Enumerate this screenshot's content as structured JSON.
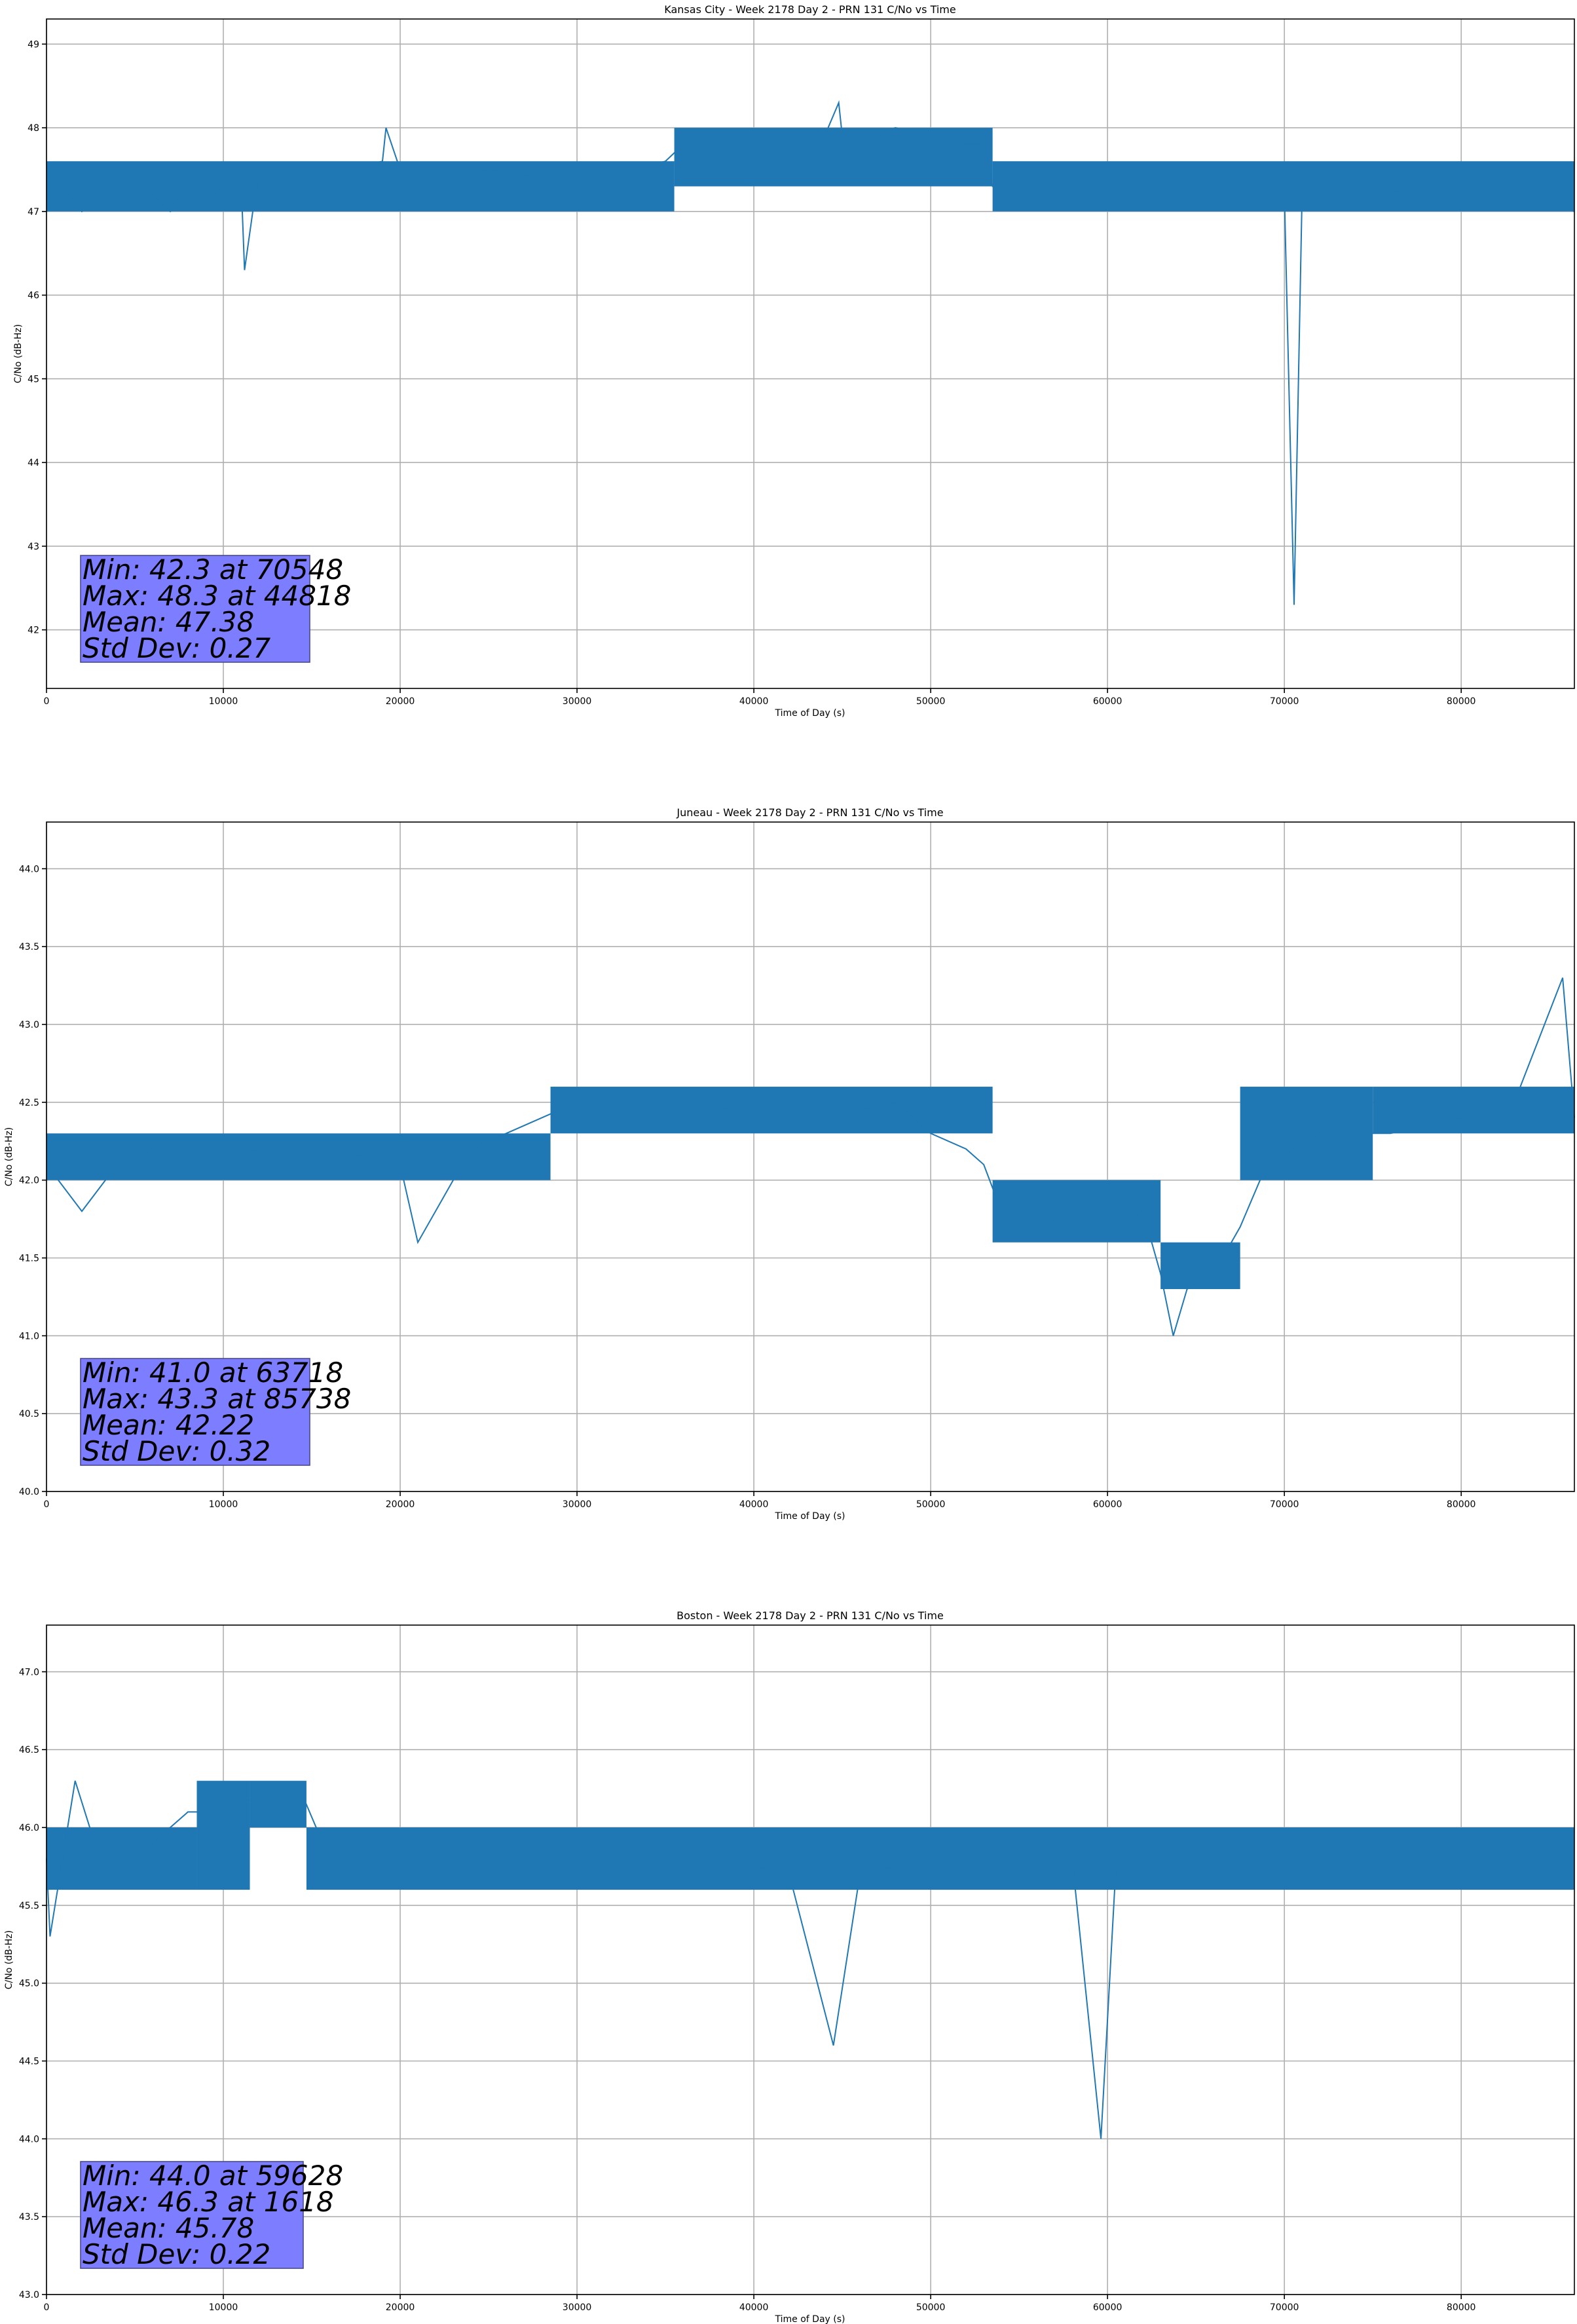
{
  "colors": {
    "series": "#1f77b4",
    "stats_box": "#7d7dff",
    "grid": "#b0b0b0"
  },
  "chart_data": [
    {
      "type": "line",
      "title": "Kansas City - Week 2178 Day 2 - PRN 131 C/No vs Time",
      "xlabel": "Time of Day (s)",
      "ylabel": "C/No (dB-Hz)",
      "xlim": [
        0,
        86400
      ],
      "ylim": [
        41.3,
        49.3
      ],
      "xticks": [
        0,
        10000,
        20000,
        30000,
        40000,
        50000,
        60000,
        70000,
        80000
      ],
      "xtick_labels": [
        "0",
        "10000",
        "20000",
        "30000",
        "40000",
        "50000",
        "60000",
        "70000",
        "80000"
      ],
      "yticks": [
        42,
        43,
        44,
        45,
        46,
        47,
        48,
        49
      ],
      "ytick_labels": [
        "42",
        "43",
        "44",
        "45",
        "46",
        "47",
        "48",
        "49"
      ],
      "grid": true,
      "series": [
        {
          "name": "PRN 131 C/No",
          "x": [
            0,
            1000,
            2000,
            4000,
            6000,
            7000,
            7500,
            8000,
            9500,
            10000,
            11000,
            11200,
            12000,
            14000,
            15000,
            17000,
            19000,
            19200,
            20000,
            22000,
            25000,
            28000,
            30000,
            33000,
            35000,
            35500,
            36000,
            37000,
            39000,
            40000,
            42000,
            44000,
            44800,
            45000,
            47000,
            48000,
            50000,
            52000,
            53000,
            53500,
            55000,
            56000,
            57000,
            58000,
            60000,
            62000,
            64000,
            66000,
            68000,
            70000,
            70548,
            71000,
            73000,
            75000,
            78000,
            80000,
            82000,
            84000,
            85000,
            86400
          ],
          "y": [
            47.2,
            47.3,
            47.0,
            47.3,
            47.2,
            47.0,
            47.2,
            47.3,
            47.2,
            47.3,
            47.4,
            46.3,
            47.5,
            47.4,
            47.5,
            47.5,
            47.6,
            48.0,
            47.5,
            47.4,
            47.5,
            47.4,
            47.5,
            47.5,
            47.6,
            47.7,
            47.6,
            47.5,
            47.7,
            47.6,
            47.7,
            47.9,
            48.3,
            47.9,
            47.9,
            48.0,
            47.9,
            47.8,
            47.8,
            47.3,
            47.3,
            47.3,
            47.2,
            47.1,
            47.2,
            47.2,
            47.2,
            47.2,
            47.2,
            47.2,
            42.3,
            47.2,
            47.3,
            47.2,
            47.3,
            47.2,
            47.2,
            47.2,
            47.1,
            47.0
          ],
          "band": [
            {
              "x0": 0,
              "x1": 35500,
              "y0": 47.0,
              "y1": 47.6
            },
            {
              "x0": 35500,
              "x1": 53500,
              "y0": 47.3,
              "y1": 48.0
            },
            {
              "x0": 53500,
              "x1": 86400,
              "y0": 47.0,
              "y1": 47.6
            }
          ]
        }
      ],
      "stats": {
        "lines": [
          "Min: 42.3 at 70548",
          "Max: 48.3 at 44818",
          "Mean: 47.38",
          "Std Dev: 0.27"
        ],
        "placement": "lower-left"
      }
    },
    {
      "type": "line",
      "title": "Juneau - Week 2178 Day 2 - PRN 131 C/No vs Time",
      "xlabel": "Time of Day (s)",
      "ylabel": "C/No (dB-Hz)",
      "xlim": [
        0,
        86400
      ],
      "ylim": [
        40.0,
        44.3
      ],
      "xticks": [
        0,
        10000,
        20000,
        30000,
        40000,
        50000,
        60000,
        70000,
        80000
      ],
      "xtick_labels": [
        "0",
        "10000",
        "20000",
        "30000",
        "40000",
        "50000",
        "60000",
        "70000",
        "80000"
      ],
      "yticks": [
        40.0,
        40.5,
        41.0,
        41.5,
        42.0,
        42.5,
        43.0,
        43.5,
        44.0
      ],
      "ytick_labels": [
        "40.0",
        "40.5",
        "41.0",
        "41.5",
        "42.0",
        "42.5",
        "43.0",
        "43.5",
        "44.0"
      ],
      "grid": true,
      "series": [
        {
          "name": "PRN 131 C/No",
          "x": [
            0,
            2000,
            4000,
            6000,
            8000,
            12000,
            16000,
            20000,
            21000,
            24000,
            26000,
            28000,
            30000,
            32000,
            36000,
            40000,
            44000,
            48000,
            50000,
            52000,
            53000,
            54000,
            56000,
            58000,
            60000,
            62000,
            63000,
            63718,
            64500,
            66000,
            67500,
            69000,
            72000,
            76000,
            80000,
            83000,
            85738,
            86400
          ],
          "y": [
            42.1,
            41.8,
            42.1,
            42.2,
            42.1,
            42.2,
            42.2,
            42.1,
            41.6,
            42.2,
            42.3,
            42.4,
            42.5,
            42.4,
            42.4,
            42.5,
            42.4,
            42.5,
            42.3,
            42.2,
            42.1,
            41.8,
            41.7,
            41.8,
            41.7,
            41.8,
            41.4,
            41.0,
            41.3,
            41.4,
            41.7,
            42.1,
            42.3,
            42.3,
            42.4,
            42.5,
            43.3,
            42.4
          ],
          "band": [
            {
              "x0": 0,
              "x1": 28500,
              "y0": 42.0,
              "y1": 42.3
            },
            {
              "x0": 28500,
              "x1": 53500,
              "y0": 42.3,
              "y1": 42.6
            },
            {
              "x0": 53500,
              "x1": 63000,
              "y0": 41.6,
              "y1": 42.0
            },
            {
              "x0": 63000,
              "x1": 67500,
              "y0": 41.3,
              "y1": 41.6
            },
            {
              "x0": 67500,
              "x1": 75000,
              "y0": 42.0,
              "y1": 42.6
            },
            {
              "x0": 75000,
              "x1": 86400,
              "y0": 42.3,
              "y1": 42.6
            }
          ]
        }
      ],
      "stats": {
        "lines": [
          "Min: 41.0 at 63718",
          "Max: 43.3 at 85738",
          "Mean: 42.22",
          "Std Dev: 0.32"
        ],
        "placement": "lower-left"
      }
    },
    {
      "type": "line",
      "title": "Boston - Week 2178 Day 2 - PRN 131 C/No vs Time",
      "xlabel": "Time of Day (s)",
      "ylabel": "C/No (dB-Hz)",
      "xlim": [
        0,
        86400
      ],
      "ylim": [
        43.0,
        47.3
      ],
      "xticks": [
        0,
        10000,
        20000,
        30000,
        40000,
        50000,
        60000,
        70000,
        80000
      ],
      "xtick_labels": [
        "0",
        "10000",
        "20000",
        "30000",
        "40000",
        "50000",
        "60000",
        "70000",
        "80000"
      ],
      "yticks": [
        43.0,
        43.5,
        44.0,
        44.5,
        45.0,
        45.5,
        46.0,
        46.5,
        47.0
      ],
      "ytick_labels": [
        "43.0",
        "43.5",
        "44.0",
        "44.5",
        "45.0",
        "45.5",
        "46.0",
        "46.5",
        "47.0"
      ],
      "grid": true,
      "series": [
        {
          "name": "PRN 131 C/No",
          "x": [
            0,
            200,
            1618,
            3000,
            5000,
            8000,
            10000,
            12000,
            14500,
            16000,
            19000,
            22000,
            26000,
            30000,
            34000,
            38000,
            42000,
            44500,
            46000,
            50000,
            54000,
            58000,
            59628,
            60500,
            64000,
            68000,
            72000,
            76000,
            80000,
            84000,
            86400
          ],
          "y": [
            45.8,
            45.3,
            46.3,
            45.8,
            45.8,
            46.1,
            46.1,
            46.2,
            46.2,
            45.8,
            45.8,
            45.8,
            45.8,
            45.8,
            45.8,
            45.8,
            45.7,
            44.6,
            45.7,
            45.8,
            45.8,
            45.8,
            44.0,
            45.8,
            45.8,
            45.8,
            45.8,
            45.8,
            45.8,
            45.8,
            45.8
          ],
          "band": [
            {
              "x0": 0,
              "x1": 8500,
              "y0": 45.6,
              "y1": 46.0
            },
            {
              "x0": 8500,
              "x1": 11500,
              "y0": 45.6,
              "y1": 46.3
            },
            {
              "x0": 11500,
              "x1": 14700,
              "y0": 46.0,
              "y1": 46.3
            },
            {
              "x0": 14700,
              "x1": 86400,
              "y0": 45.6,
              "y1": 46.0
            }
          ]
        }
      ],
      "stats": {
        "lines": [
          "Min: 44.0 at 59628",
          "Max: 46.3 at 1618",
          "Mean: 45.78",
          "Std Dev: 0.22"
        ],
        "placement": "lower-left"
      }
    }
  ]
}
